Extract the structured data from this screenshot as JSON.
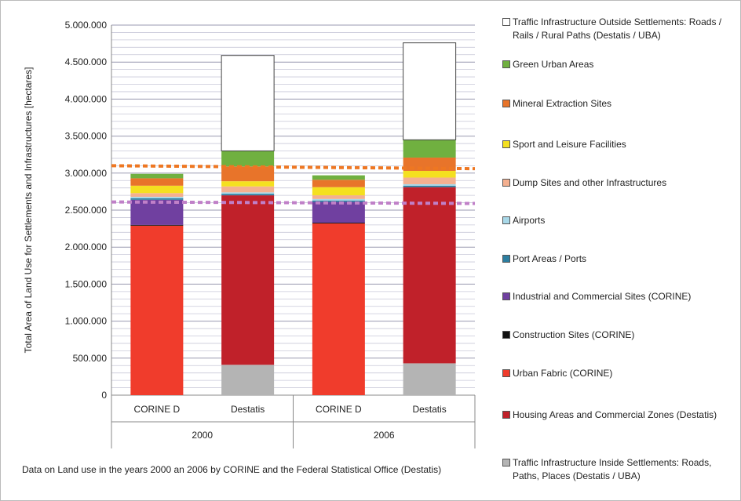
{
  "chart_data": {
    "type": "bar",
    "stacked": true,
    "ylabel": "Total Area of Land Use for Settlements and Infrastructures [hectares]",
    "ylim": [
      0,
      5000000
    ],
    "yticks": [
      "0",
      "500.000",
      "1.000.000",
      "1.500.000",
      "2.000.000",
      "2.500.000",
      "3.000.000",
      "3.500.000",
      "4.000.000",
      "4.500.000",
      "5.000.000"
    ],
    "categories": [
      "CORINE D",
      "Destatis",
      "CORINE D",
      "Destatis"
    ],
    "groups": [
      "2000",
      "2006"
    ],
    "series": [
      {
        "name": "Traffic Infrastructure Inside Settlements: Roads, Paths, Places (Destatis / UBA)",
        "color": "#b4b4b4",
        "values": [
          0,
          410000,
          0,
          430000
        ]
      },
      {
        "name": "Housing Areas and Commercial Zones (Destatis)",
        "color": "#c0212a",
        "values": [
          0,
          2290000,
          0,
          2380000
        ]
      },
      {
        "name": "Urban Fabric (CORINE)",
        "color": "#f03c2c",
        "values": [
          2290000,
          0,
          2320000,
          0
        ]
      },
      {
        "name": "Construction Sites (CORINE)",
        "color": "#111111",
        "values": [
          10000,
          0,
          10000,
          0
        ]
      },
      {
        "name": "Industrial and Commercial Sites (CORINE)",
        "color": "#7040a0",
        "values": [
          340000,
          0,
          280000,
          0
        ]
      },
      {
        "name": "Port Areas / Ports",
        "color": "#2c7ea0",
        "values": [
          20000,
          20000,
          20000,
          20000
        ]
      },
      {
        "name": "Airports",
        "color": "#a8d8e8",
        "values": [
          20000,
          20000,
          20000,
          20000
        ]
      },
      {
        "name": "Dump Sites and other Infrastructures",
        "color": "#f4b090",
        "values": [
          50000,
          80000,
          50000,
          90000
        ]
      },
      {
        "name": "Sport and Leisure Facilities",
        "color": "#f4e020",
        "values": [
          100000,
          70000,
          110000,
          90000
        ]
      },
      {
        "name": "Mineral Extraction Sites",
        "color": "#e8742a",
        "values": [
          100000,
          200000,
          100000,
          180000
        ]
      },
      {
        "name": "Green Urban Areas",
        "color": "#70b040",
        "values": [
          60000,
          210000,
          60000,
          240000
        ]
      },
      {
        "name": "Traffic Infrastructure Outside Settlements: Roads / Rails / Rural Paths (Destatis / UBA)",
        "color": "#ffffff",
        "values": [
          0,
          1290000,
          0,
          1310000
        ]
      }
    ],
    "reference_lines": [
      {
        "color": "#ee7722",
        "values": [
          3100000,
          3060000
        ]
      },
      {
        "color": "#c080c8",
        "values": [
          2610000,
          2590000
        ]
      }
    ],
    "grid": true,
    "legend_placement": "right"
  },
  "footnote": "Data  on Land use in the years 2000 an 2006 by CORINE and the Federal Statistical Office (Destatis)"
}
